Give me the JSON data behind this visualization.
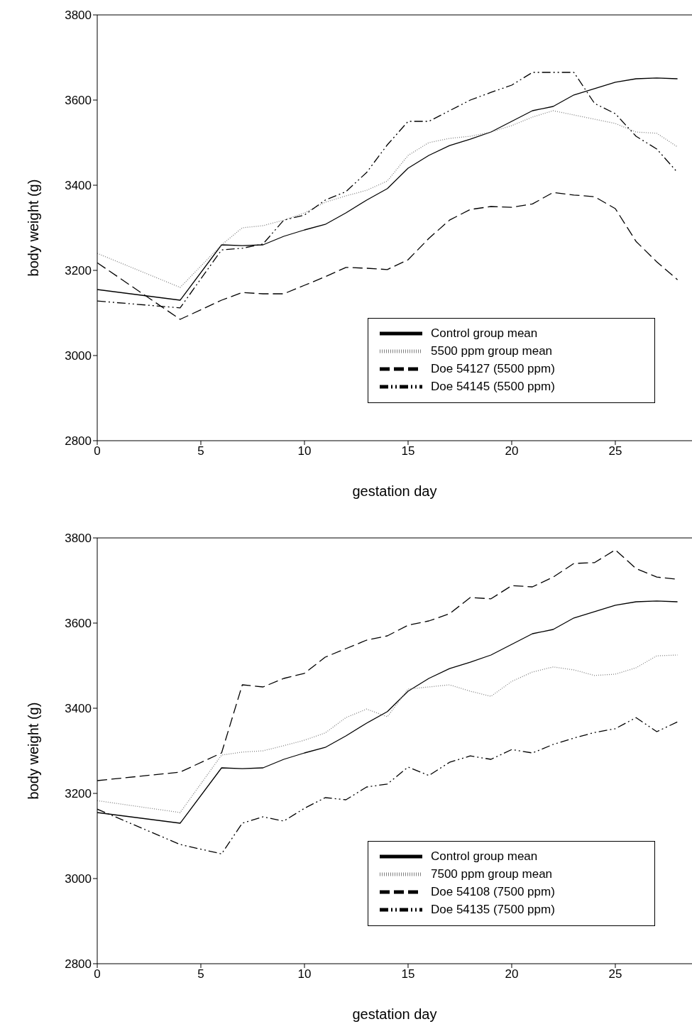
{
  "chart_data": [
    {
      "type": "line",
      "xlabel": "gestation day",
      "ylabel": "body weight (g)",
      "x": [
        0,
        4,
        6,
        7,
        8,
        9,
        10,
        11,
        12,
        13,
        14,
        15,
        16,
        17,
        18,
        19,
        20,
        21,
        22,
        23,
        24,
        25,
        26,
        27,
        28
      ],
      "xlim": [
        0,
        28.7
      ],
      "xticks": [
        0,
        5,
        10,
        15,
        20,
        25
      ],
      "ylim": [
        2800,
        3800
      ],
      "yticks": [
        2800,
        3000,
        3200,
        3400,
        3600,
        3800
      ],
      "grid": false,
      "legend": "bottom right",
      "marker": "none",
      "series": [
        {
          "name": "Control group mean",
          "color": "#000000",
          "line_style": "solid",
          "values": [
            3155,
            3130,
            3260,
            3258,
            3260,
            3280,
            3295,
            3308,
            3335,
            3365,
            3392,
            3440,
            3470,
            3493,
            3508,
            3525,
            3550,
            3575,
            3585,
            3612,
            3627,
            3642,
            3650,
            3652,
            3650
          ]
        },
        {
          "name": "5500 ppm group mean",
          "color": "#808080",
          "line_style": "dotted",
          "values": [
            3240,
            3160,
            3260,
            3300,
            3305,
            3318,
            3335,
            3360,
            3375,
            3388,
            3410,
            3470,
            3500,
            3510,
            3515,
            3525,
            3540,
            3560,
            3575,
            3565,
            3555,
            3545,
            3525,
            3522,
            3490
          ]
        },
        {
          "name": "Doe 54127 (5500 ppm)",
          "color": "#000000",
          "line_style": "dashed",
          "values": [
            3218,
            3085,
            3130,
            3148,
            3145,
            3145,
            3165,
            3185,
            3207,
            3205,
            3202,
            3225,
            3275,
            3318,
            3343,
            3350,
            3348,
            3356,
            3383,
            3377,
            3373,
            3345,
            3268,
            3220,
            3178
          ]
        },
        {
          "name": "Doe 54145 (5500 ppm)",
          "color": "#000000",
          "line_style": "dashdot",
          "values": [
            3128,
            3112,
            3248,
            3252,
            3262,
            3318,
            3330,
            3365,
            3385,
            3430,
            3495,
            3550,
            3550,
            3575,
            3600,
            3618,
            3635,
            3665,
            3665,
            3665,
            3592,
            3568,
            3515,
            3485,
            3430
          ]
        }
      ]
    },
    {
      "type": "line",
      "xlabel": "gestation day",
      "ylabel": "body weight (g)",
      "x": [
        0,
        4,
        6,
        7,
        8,
        9,
        10,
        11,
        12,
        13,
        14,
        15,
        16,
        17,
        18,
        19,
        20,
        21,
        22,
        23,
        24,
        25,
        26,
        27,
        28
      ],
      "xlim": [
        0,
        28.7
      ],
      "xticks": [
        0,
        5,
        10,
        15,
        20,
        25
      ],
      "ylim": [
        2800,
        3800
      ],
      "yticks": [
        2800,
        3000,
        3200,
        3400,
        3600,
        3800
      ],
      "grid": false,
      "legend": "bottom right",
      "marker": "none",
      "series": [
        {
          "name": "Control group mean",
          "color": "#000000",
          "line_style": "solid",
          "values": [
            3155,
            3130,
            3260,
            3258,
            3260,
            3280,
            3295,
            3308,
            3335,
            3365,
            3392,
            3440,
            3470,
            3493,
            3508,
            3525,
            3550,
            3575,
            3585,
            3612,
            3627,
            3642,
            3650,
            3652,
            3650
          ]
        },
        {
          "name": "7500 ppm group mean",
          "color": "#808080",
          "line_style": "dotted",
          "values": [
            3183,
            3155,
            3290,
            3297,
            3300,
            3312,
            3325,
            3342,
            3378,
            3398,
            3380,
            3445,
            3450,
            3455,
            3440,
            3428,
            3463,
            3485,
            3497,
            3490,
            3477,
            3480,
            3495,
            3523,
            3525
          ]
        },
        {
          "name": "Doe 54108 (7500 ppm)",
          "color": "#000000",
          "line_style": "dashed",
          "values": [
            3230,
            3250,
            3295,
            3455,
            3450,
            3470,
            3482,
            3520,
            3540,
            3560,
            3570,
            3595,
            3605,
            3622,
            3660,
            3657,
            3688,
            3685,
            3708,
            3740,
            3742,
            3772,
            3728,
            3708,
            3703
          ]
        },
        {
          "name": "Doe 54135 (7500 ppm)",
          "color": "#000000",
          "line_style": "dashdot",
          "values": [
            3163,
            3080,
            3058,
            3130,
            3145,
            3135,
            3165,
            3190,
            3185,
            3215,
            3222,
            3262,
            3242,
            3273,
            3288,
            3280,
            3303,
            3295,
            3315,
            3330,
            3343,
            3352,
            3378,
            3345,
            3368
          ]
        }
      ]
    }
  ]
}
